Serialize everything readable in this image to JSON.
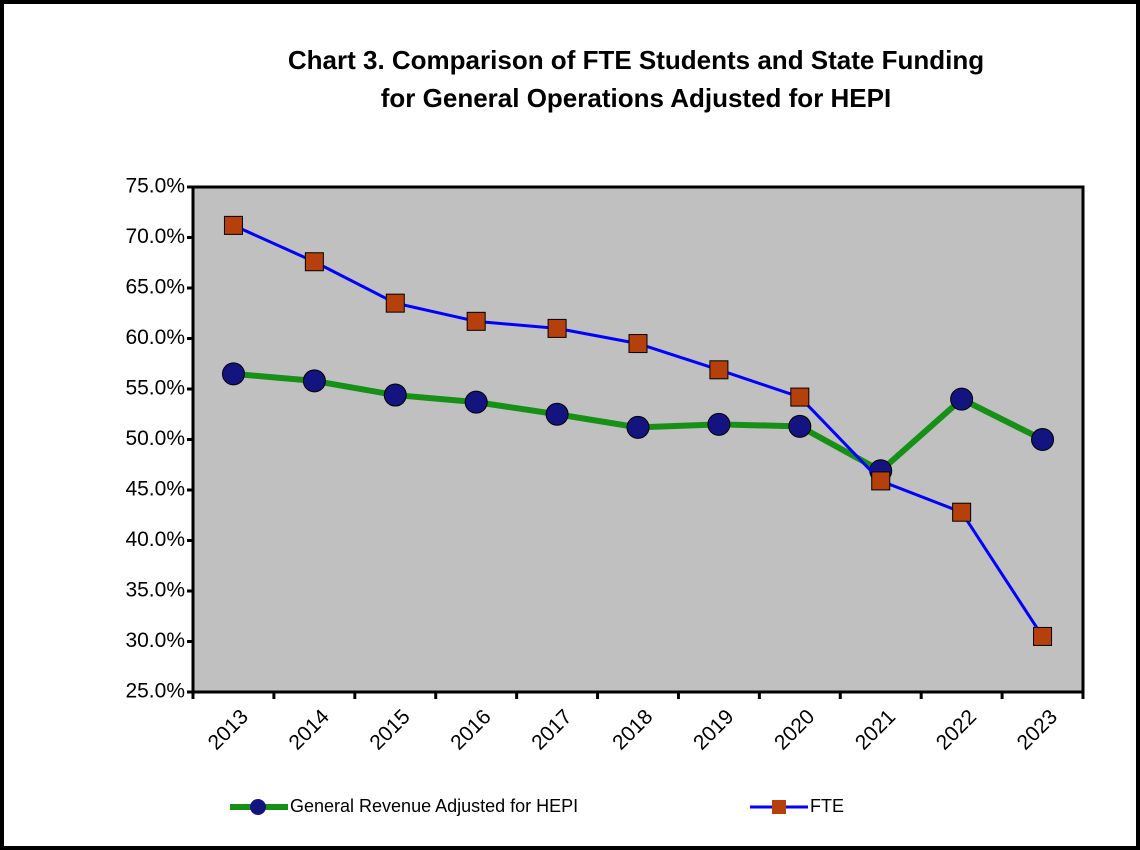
{
  "chart_data": {
    "type": "line",
    "title": [
      "Chart 3. Comparison of FTE Students and State Funding",
      "for General Operations Adjusted for HEPI"
    ],
    "categories": [
      "2013",
      "2014",
      "2015",
      "2016",
      "2017",
      "2018",
      "2019",
      "2020",
      "2021",
      "2022",
      "2023"
    ],
    "series": [
      {
        "name": "General Revenue Adjusted for HEPI",
        "color": "#169016",
        "marker_color": "#141480",
        "marker": "circle",
        "values": [
          56.5,
          55.8,
          54.4,
          53.7,
          52.5,
          51.2,
          51.5,
          51.3,
          46.9,
          54.0,
          50.0
        ]
      },
      {
        "name": "FTE",
        "color": "#0000ff",
        "marker_color": "#b5400c",
        "marker": "square",
        "values": [
          71.2,
          67.6,
          63.5,
          61.7,
          61.0,
          59.5,
          56.9,
          54.2,
          45.9,
          42.8,
          30.5
        ]
      }
    ],
    "ylim": [
      25,
      75
    ],
    "yticks": [
      {
        "value": 25,
        "label": "25.0%"
      },
      {
        "value": 30,
        "label": "30.0%"
      },
      {
        "value": 35,
        "label": "35.0%"
      },
      {
        "value": 40,
        "label": "40.0%"
      },
      {
        "value": 45,
        "label": "45.0%"
      },
      {
        "value": 50,
        "label": "50.0%"
      },
      {
        "value": 55,
        "label": "55.0%"
      },
      {
        "value": 60,
        "label": "60.0%"
      },
      {
        "value": 65,
        "label": "65.0%"
      },
      {
        "value": 70,
        "label": "70.0%"
      },
      {
        "value": 75,
        "label": "75.0%"
      }
    ],
    "grid": false,
    "legend": "bottom"
  }
}
